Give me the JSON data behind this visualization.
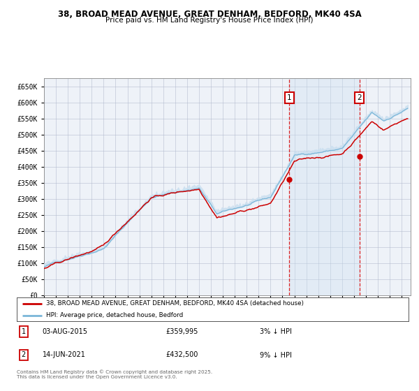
{
  "title_line1": "38, BROAD MEAD AVENUE, GREAT DENHAM, BEDFORD, MK40 4SA",
  "title_line2": "Price paid vs. HM Land Registry's House Price Index (HPI)",
  "ylabel_ticks": [
    "£0",
    "£50K",
    "£100K",
    "£150K",
    "£200K",
    "£250K",
    "£300K",
    "£350K",
    "£400K",
    "£450K",
    "£500K",
    "£550K",
    "£600K",
    "£650K"
  ],
  "ytick_values": [
    0,
    50000,
    100000,
    150000,
    200000,
    250000,
    300000,
    350000,
    400000,
    450000,
    500000,
    550000,
    600000,
    650000
  ],
  "ylim": [
    0,
    675000
  ],
  "year_start": 1995,
  "year_end": 2025,
  "hpi_color": "#7ab6d8",
  "hpi_fill_color": "#cce0f0",
  "price_color": "#cc0000",
  "sale1_date": 2015.58,
  "sale1_price": 359995,
  "sale2_date": 2021.45,
  "sale2_price": 432500,
  "annotation1_text": "03-AUG-2015",
  "annotation1_val": "£359,995",
  "annotation1_pct": "3% ↓ HPI",
  "annotation2_text": "14-JUN-2021",
  "annotation2_val": "£432,500",
  "annotation2_pct": "9% ↓ HPI",
  "legend1": "38, BROAD MEAD AVENUE, GREAT DENHAM, BEDFORD, MK40 4SA (detached house)",
  "legend2": "HPI: Average price, detached house, Bedford",
  "footer": "Contains HM Land Registry data © Crown copyright and database right 2025.\nThis data is licensed under the Open Government Licence v3.0.",
  "plot_bg": "#eef2f8",
  "grid_color": "#b0b8cc"
}
